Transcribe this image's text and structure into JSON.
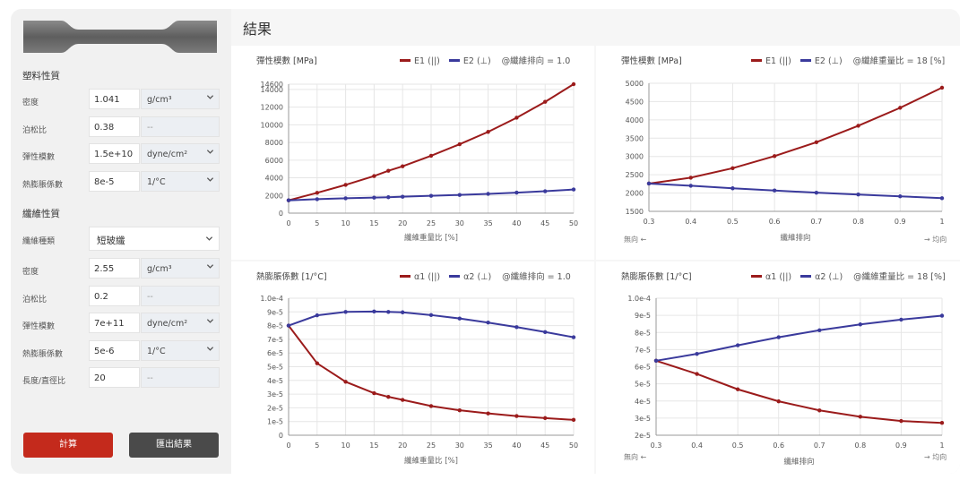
{
  "sidebar": {
    "plastic_section": "塑料性質",
    "fiber_section": "纖維性質",
    "plastic": [
      {
        "label": "密度",
        "value": "1.041",
        "unit": "g/cm³",
        "has_select": true
      },
      {
        "label": "泊松比",
        "value": "0.38",
        "unit": "--",
        "has_select": false
      },
      {
        "label": "彈性模數",
        "value": "1.5e+10",
        "unit": "dyne/cm²",
        "has_select": true
      },
      {
        "label": "熱膨脹係數",
        "value": "8e-5",
        "unit": "1/°C",
        "has_select": true
      }
    ],
    "fiber_type": {
      "label": "纖維種類",
      "value": "短玻纖"
    },
    "fiber": [
      {
        "label": "密度",
        "value": "2.55",
        "unit": "g/cm³",
        "has_select": true
      },
      {
        "label": "泊松比",
        "value": "0.2",
        "unit": "--",
        "has_select": false
      },
      {
        "label": "彈性模數",
        "value": "7e+11",
        "unit": "dyne/cm²",
        "has_select": true
      },
      {
        "label": "熱膨脹係數",
        "value": "5e-6",
        "unit": "1/°C",
        "has_select": true
      },
      {
        "label": "長度/直徑比",
        "value": "20",
        "unit": "--",
        "has_select": false
      }
    ],
    "calc_button": "計算",
    "export_button": "匯出結果"
  },
  "results": {
    "title": "結果"
  },
  "colors": {
    "series1": "#9b1b1b",
    "series2": "#3a3a9c",
    "primary_button": "#c42a1c",
    "secondary_button": "#4a4a4a"
  },
  "chart_data": [
    {
      "type": "line",
      "title": "彈性模數 [MPa]",
      "note": "@纖維排向 = 1.0",
      "xlabel": "纖維重量比 [%]",
      "x": [
        0,
        5,
        10,
        15,
        17.5,
        20,
        25,
        30,
        35,
        40,
        45,
        50
      ],
      "xticks": [
        0,
        5,
        10,
        15,
        20,
        25,
        30,
        35,
        40,
        45,
        50
      ],
      "xlim": [
        0,
        50
      ],
      "ylim": [
        0,
        14600
      ],
      "yticks": [
        0,
        2000,
        4000,
        6000,
        8000,
        10000,
        12000,
        14000,
        14600
      ],
      "series": [
        {
          "name": "E1 (||)",
          "values": [
            1450,
            2300,
            3200,
            4200,
            4800,
            5300,
            6500,
            7800,
            9200,
            10800,
            12600,
            14600
          ]
        },
        {
          "name": "E2 (⊥)",
          "values": [
            1450,
            1580,
            1680,
            1760,
            1800,
            1860,
            1960,
            2060,
            2180,
            2320,
            2480,
            2680
          ]
        }
      ]
    },
    {
      "type": "line",
      "title": "彈性模數 [MPa]",
      "note": "@纖維重量比 = 18 [%]",
      "xlabel": "纖維排向",
      "xleft": "無向 ←",
      "xright": "→ 均向",
      "x": [
        0.3,
        0.4,
        0.5,
        0.6,
        0.7,
        0.8,
        0.9,
        1.0
      ],
      "xticks": [
        0.3,
        0.4,
        0.5,
        0.6,
        0.7,
        0.8,
        0.9,
        1.0
      ],
      "xlim": [
        0.3,
        1.0
      ],
      "ylim": [
        1500,
        5000
      ],
      "yticks": [
        1500,
        2000,
        2500,
        3000,
        3500,
        4000,
        4500,
        5000
      ],
      "series": [
        {
          "name": "E1 (||)",
          "values": [
            2260,
            2420,
            2680,
            3010,
            3390,
            3840,
            4330,
            4880
          ]
        },
        {
          "name": "E2 (⊥)",
          "values": [
            2260,
            2200,
            2130,
            2070,
            2010,
            1960,
            1910,
            1860
          ]
        }
      ]
    },
    {
      "type": "line",
      "title": "熱膨脹係數 [1/°C]",
      "note": "@纖維排向 = 1.0",
      "xlabel": "纖維重量比 [%]",
      "x": [
        0,
        5,
        10,
        15,
        17.5,
        20,
        25,
        30,
        35,
        40,
        45,
        50
      ],
      "xticks": [
        0,
        5,
        10,
        15,
        20,
        25,
        30,
        35,
        40,
        45,
        50
      ],
      "xlim": [
        0,
        50
      ],
      "ylim": [
        0,
        0.0001
      ],
      "yticks": [
        0,
        1e-05,
        2e-05,
        3e-05,
        4e-05,
        5e-05,
        6e-05,
        7e-05,
        8e-05,
        9e-05,
        0.0001
      ],
      "ytick_labels": [
        "0",
        "1e-5",
        "2e-5",
        "3e-5",
        "4e-5",
        "5e-5",
        "6e-5",
        "7e-5",
        "8e-5",
        "9e-5",
        "1.0e-4"
      ],
      "series": [
        {
          "name": "α1 (||)",
          "values": [
            8e-05,
            5.25e-05,
            3.9e-05,
            3.07e-05,
            2.8e-05,
            2.58e-05,
            2.13e-05,
            1.82e-05,
            1.59e-05,
            1.4e-05,
            1.25e-05,
            1.12e-05
          ]
        },
        {
          "name": "α2 (⊥)",
          "values": [
            8e-05,
            8.75e-05,
            9e-05,
            9.03e-05,
            9e-05,
            8.97e-05,
            8.77e-05,
            8.52e-05,
            8.22e-05,
            7.89e-05,
            7.53e-05,
            7.15e-05
          ]
        }
      ]
    },
    {
      "type": "line",
      "title": "熱膨脹係數 [1/°C]",
      "note": "@纖維重量比 = 18 [%]",
      "xlabel": "纖維排向",
      "xleft": "無向 ←",
      "xright": "→ 均向",
      "x": [
        0.3,
        0.4,
        0.5,
        0.6,
        0.7,
        0.8,
        0.9,
        1.0
      ],
      "xticks": [
        0.3,
        0.4,
        0.5,
        0.6,
        0.7,
        0.8,
        0.9,
        1.0
      ],
      "xlim": [
        0.3,
        1.0
      ],
      "ylim": [
        2e-05,
        0.0001
      ],
      "yticks": [
        2e-05,
        3e-05,
        4e-05,
        5e-05,
        6e-05,
        7e-05,
        8e-05,
        9e-05,
        0.0001
      ],
      "ytick_labels": [
        "2e-5",
        "3e-5",
        "4e-5",
        "5e-5",
        "6e-5",
        "7e-5",
        "8e-5",
        "9e-5",
        "1.0e-4"
      ],
      "series": [
        {
          "name": "α1 (||)",
          "values": [
            6.35e-05,
            5.58e-05,
            4.68e-05,
            3.98e-05,
            3.45e-05,
            3.08e-05,
            2.83e-05,
            2.72e-05
          ]
        },
        {
          "name": "α2 (⊥)",
          "values": [
            6.35e-05,
            6.75e-05,
            7.25e-05,
            7.72e-05,
            8.13e-05,
            8.47e-05,
            8.75e-05,
            8.98e-05
          ]
        }
      ]
    }
  ]
}
